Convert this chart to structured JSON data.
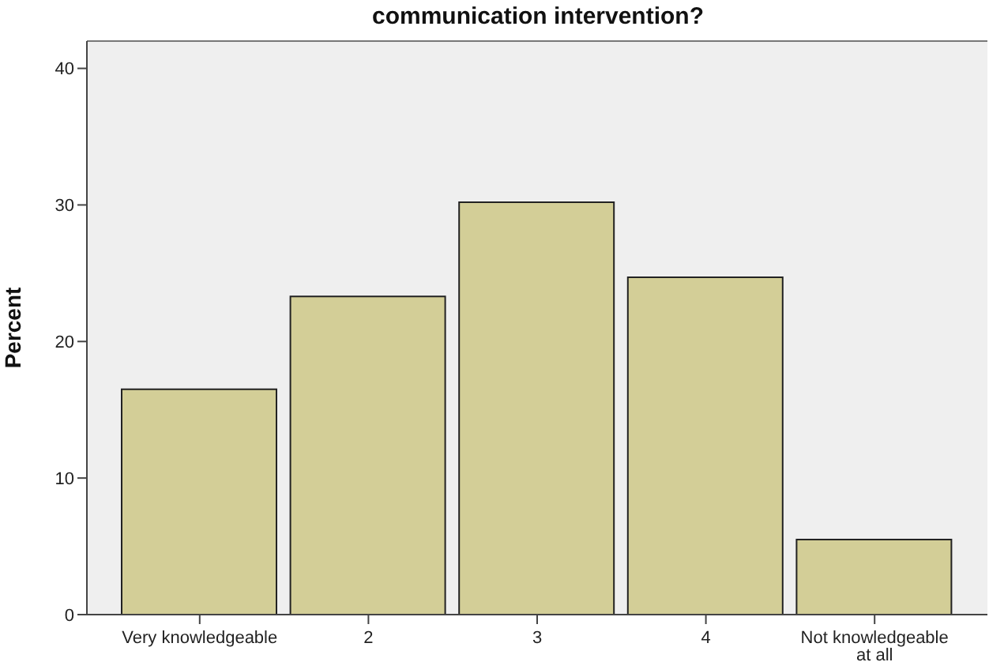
{
  "chart_data": {
    "type": "bar",
    "title": "communication intervention?",
    "ylabel": "Percent",
    "categories": [
      "Very knowledgeable",
      "2",
      "3",
      "4",
      "Not knowledgeable at all"
    ],
    "values": [
      16.5,
      23.3,
      30.2,
      24.7,
      5.5
    ],
    "color": "#d3ce97",
    "ylim": [
      0,
      42
    ],
    "yticks": [
      0,
      10,
      20,
      30,
      40
    ],
    "grid": false
  }
}
